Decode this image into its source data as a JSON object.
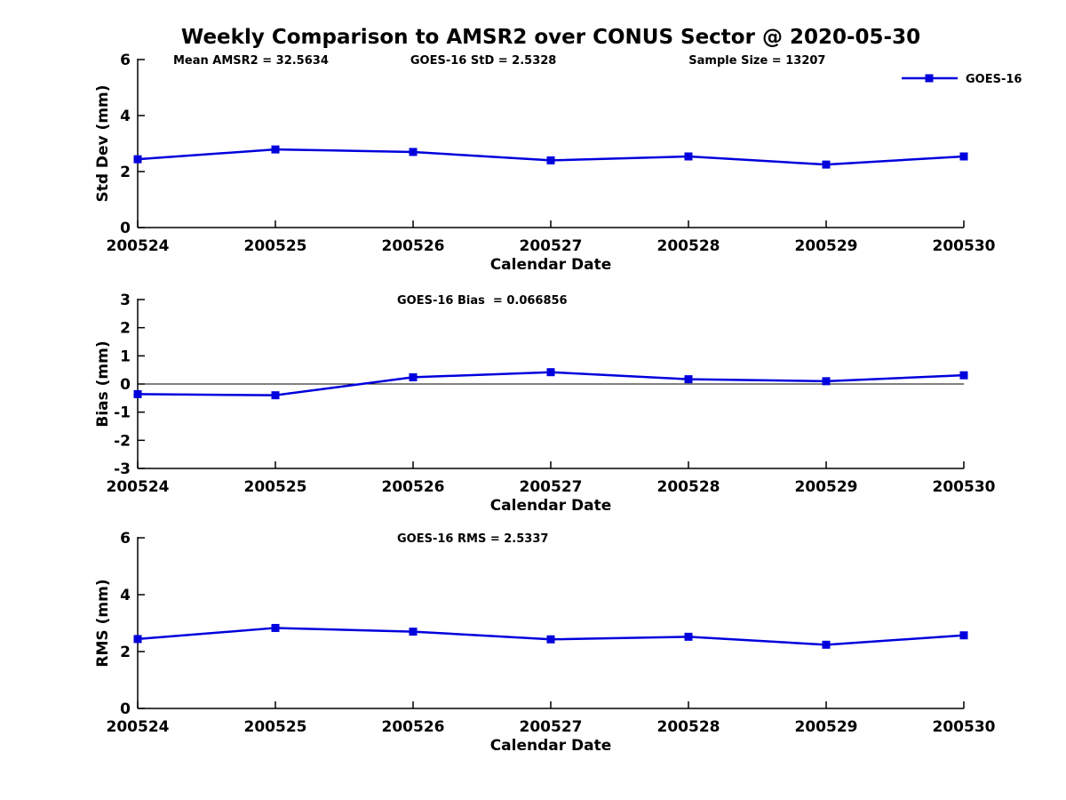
{
  "title": "Weekly Comparison to AMSR2 over CONUS Sector @ 2020-05-30",
  "colors": {
    "series_line": "#0000dd",
    "axis": "#000000",
    "text": "#000000",
    "background": "#ffffff"
  },
  "legend": {
    "label": "GOES-16",
    "position": "top-right"
  },
  "chart_data": [
    {
      "type": "line",
      "id": "std-dev",
      "title": "",
      "xlabel": "Calendar Date",
      "ylabel": "Std Dev (mm)",
      "categories": [
        "200524",
        "200525",
        "200526",
        "200527",
        "200528",
        "200529",
        "200530"
      ],
      "series": [
        {
          "name": "GOES-16",
          "values": [
            2.44,
            2.79,
            2.7,
            2.4,
            2.54,
            2.25,
            2.54
          ]
        }
      ],
      "ylim": [
        0,
        6
      ],
      "yticks": [
        0,
        2,
        4,
        6
      ],
      "grid": false,
      "zero_line": false,
      "show_legend": true,
      "annotations": [
        {
          "text": "Mean AMSR2 = 32.5634",
          "xfrac": 0.043
        },
        {
          "text": "GOES-16 StD = 2.5328",
          "xfrac": 0.33
        },
        {
          "text": "Sample Size = 13207",
          "xfrac": 0.667
        }
      ]
    },
    {
      "type": "line",
      "id": "bias",
      "title": "",
      "xlabel": "Calendar Date",
      "ylabel": "Bias (mm)",
      "categories": [
        "200524",
        "200525",
        "200526",
        "200527",
        "200528",
        "200529",
        "200530"
      ],
      "series": [
        {
          "name": "GOES-16",
          "values": [
            -0.36,
            -0.4,
            0.24,
            0.42,
            0.17,
            0.1,
            0.31
          ]
        }
      ],
      "ylim": [
        -3,
        3
      ],
      "yticks": [
        -3,
        -2,
        -1,
        0,
        1,
        2,
        3
      ],
      "grid": false,
      "zero_line": true,
      "show_legend": false,
      "annotations": [
        {
          "text": "GOES-16 Bias  = 0.066856",
          "xfrac": 0.314
        }
      ]
    },
    {
      "type": "line",
      "id": "rms",
      "title": "",
      "xlabel": "Calendar Date",
      "ylabel": "RMS (mm)",
      "categories": [
        "200524",
        "200525",
        "200526",
        "200527",
        "200528",
        "200529",
        "200530"
      ],
      "series": [
        {
          "name": "GOES-16",
          "values": [
            2.44,
            2.83,
            2.7,
            2.43,
            2.52,
            2.24,
            2.57
          ]
        }
      ],
      "ylim": [
        0,
        6
      ],
      "yticks": [
        0,
        2,
        4,
        6
      ],
      "grid": false,
      "zero_line": false,
      "show_legend": false,
      "annotations": [
        {
          "text": "GOES-16 RMS = 2.5337",
          "xfrac": 0.314
        }
      ]
    }
  ]
}
